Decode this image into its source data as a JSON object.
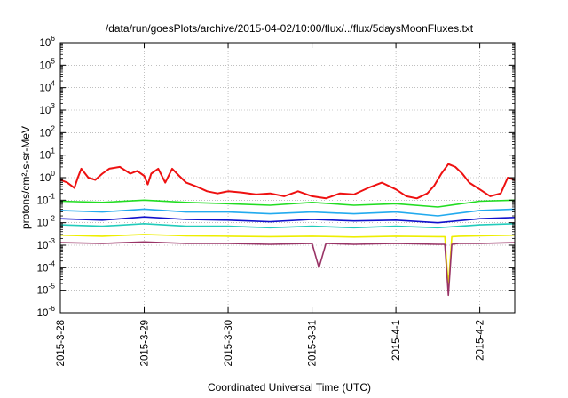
{
  "chart_data": {
    "type": "line",
    "title": "/data/run/goesPlots/archive/2015-04-02/10:00/flux/../flux/5daysMoonFluxes.txt",
    "xlabel": "Coordinated Universal Time (UTC)",
    "ylabel": "protons/cm²-s-sr-MeV",
    "y_scale": "log",
    "ylim": [
      1e-06,
      1000000.0
    ],
    "xlim": [
      "2015-03-28T00:00",
      "2015-04-02T10:00"
    ],
    "x_ticks": [
      "2015-3-28",
      "2015-3-29",
      "2015-3-30",
      "2015-3-31",
      "2015-4-1",
      "2015-4-2"
    ],
    "y_ticks": [
      {
        "base": "10",
        "exp": "6"
      },
      {
        "base": "10",
        "exp": "5"
      },
      {
        "base": "10",
        "exp": "4"
      },
      {
        "base": "10",
        "exp": "3"
      },
      {
        "base": "10",
        "exp": "2"
      },
      {
        "base": "10",
        "exp": "1"
      },
      {
        "base": "10",
        "exp": "0"
      },
      {
        "base": "10",
        "exp": "-1"
      },
      {
        "base": "10",
        "exp": "-2"
      },
      {
        "base": "10",
        "exp": "-3"
      },
      {
        "base": "10",
        "exp": "-4"
      },
      {
        "base": "10",
        "exp": "-5"
      },
      {
        "base": "10",
        "exp": "-6"
      }
    ],
    "grid": true,
    "legend": "none",
    "series": [
      {
        "color": "#ee1111",
        "x": [
          "2015-03-28T00:00",
          "2015-03-28T02:00",
          "2015-03-28T04:00",
          "2015-03-28T05:00",
          "2015-03-28T06:00",
          "2015-03-28T08:00",
          "2015-03-28T10:00",
          "2015-03-28T12:00",
          "2015-03-28T14:00",
          "2015-03-28T17:00",
          "2015-03-28T20:00",
          "2015-03-28T22:00",
          "2015-03-29T00:00",
          "2015-03-29T01:00",
          "2015-03-29T02:00",
          "2015-03-29T04:00",
          "2015-03-29T06:00",
          "2015-03-29T08:00",
          "2015-03-29T10:00",
          "2015-03-29T12:00",
          "2015-03-29T15:00",
          "2015-03-29T18:00",
          "2015-03-29T21:00",
          "2015-03-30T00:00",
          "2015-03-30T04:00",
          "2015-03-30T08:00",
          "2015-03-30T12:00",
          "2015-03-30T16:00",
          "2015-03-30T20:00",
          "2015-03-31T00:00",
          "2015-03-31T04:00",
          "2015-03-31T08:00",
          "2015-03-31T12:00",
          "2015-03-31T16:00",
          "2015-03-31T20:00",
          "2015-04-01T00:00",
          "2015-04-01T03:00",
          "2015-04-01T06:00",
          "2015-04-01T09:00",
          "2015-04-01T11:00",
          "2015-04-01T13:00",
          "2015-04-01T15:00",
          "2015-04-01T17:00",
          "2015-04-01T19:00",
          "2015-04-01T21:00",
          "2015-04-02T00:00",
          "2015-04-02T03:00",
          "2015-04-02T06:00",
          "2015-04-02T08:00",
          "2015-04-02T10:00"
        ],
        "values": [
          0.8,
          0.6,
          0.35,
          1.0,
          2.5,
          1.0,
          0.8,
          1.5,
          2.5,
          3.0,
          1.5,
          2.0,
          1.2,
          0.5,
          1.5,
          2.5,
          0.6,
          2.5,
          1.2,
          0.6,
          0.4,
          0.25,
          0.2,
          0.25,
          0.22,
          0.18,
          0.2,
          0.15,
          0.25,
          0.15,
          0.12,
          0.2,
          0.18,
          0.35,
          0.6,
          0.3,
          0.15,
          0.12,
          0.2,
          0.45,
          1.5,
          4.0,
          3.0,
          1.5,
          0.6,
          0.3,
          0.15,
          0.2,
          1.0,
          0.8
        ]
      },
      {
        "color": "#22dd22",
        "x": [
          "2015-03-28T00:00",
          "2015-03-28T12:00",
          "2015-03-29T00:00",
          "2015-03-29T12:00",
          "2015-03-30T00:00",
          "2015-03-30T12:00",
          "2015-03-31T00:00",
          "2015-03-31T12:00",
          "2015-04-01T00:00",
          "2015-04-01T12:00",
          "2015-04-02T00:00",
          "2015-04-02T10:00"
        ],
        "values": [
          0.09,
          0.08,
          0.1,
          0.08,
          0.07,
          0.06,
          0.08,
          0.06,
          0.07,
          0.05,
          0.09,
          0.1
        ]
      },
      {
        "color": "#22aaee",
        "x": [
          "2015-03-28T00:00",
          "2015-03-28T12:00",
          "2015-03-29T00:00",
          "2015-03-29T12:00",
          "2015-03-30T00:00",
          "2015-03-30T12:00",
          "2015-03-31T00:00",
          "2015-03-31T12:00",
          "2015-04-01T00:00",
          "2015-04-01T12:00",
          "2015-04-02T00:00",
          "2015-04-02T10:00"
        ],
        "values": [
          0.035,
          0.03,
          0.04,
          0.03,
          0.03,
          0.025,
          0.03,
          0.025,
          0.03,
          0.02,
          0.035,
          0.04
        ]
      },
      {
        "color": "#1111cc",
        "x": [
          "2015-03-28T00:00",
          "2015-03-28T12:00",
          "2015-03-29T00:00",
          "2015-03-29T12:00",
          "2015-03-30T00:00",
          "2015-03-30T12:00",
          "2015-03-31T00:00",
          "2015-03-31T12:00",
          "2015-04-01T00:00",
          "2015-04-01T12:00",
          "2015-04-02T00:00",
          "2015-04-02T10:00"
        ],
        "values": [
          0.015,
          0.013,
          0.018,
          0.014,
          0.013,
          0.011,
          0.014,
          0.012,
          0.013,
          0.01,
          0.015,
          0.017
        ]
      },
      {
        "color": "#22ccbb",
        "x": [
          "2015-03-28T00:00",
          "2015-03-28T12:00",
          "2015-03-29T00:00",
          "2015-03-29T12:00",
          "2015-03-30T00:00",
          "2015-03-30T12:00",
          "2015-03-31T00:00",
          "2015-03-31T12:00",
          "2015-04-01T00:00",
          "2015-04-01T12:00",
          "2015-04-02T00:00",
          "2015-04-02T10:00"
        ],
        "values": [
          0.008,
          0.007,
          0.009,
          0.007,
          0.007,
          0.006,
          0.007,
          0.006,
          0.007,
          0.006,
          0.008,
          0.009
        ]
      },
      {
        "color": "#eeee00",
        "x": [
          "2015-03-28T00:00",
          "2015-03-28T12:00",
          "2015-03-29T00:00",
          "2015-03-29T12:00",
          "2015-03-30T00:00",
          "2015-03-30T12:00",
          "2015-03-31T00:00",
          "2015-03-31T12:00",
          "2015-04-01T00:00",
          "2015-04-01T12:00",
          "2015-04-01T14:00",
          "2015-04-01T15:00",
          "2015-04-01T16:00",
          "2015-04-01T18:00",
          "2015-04-02T00:00",
          "2015-04-02T10:00"
        ],
        "values": [
          0.0028,
          0.0025,
          0.003,
          0.0026,
          0.0025,
          0.0024,
          0.0025,
          0.0023,
          0.0025,
          0.0024,
          0.0024,
          1.5e-05,
          0.0024,
          0.0025,
          0.0026,
          0.0028
        ]
      },
      {
        "color": "#993366",
        "x": [
          "2015-03-28T00:00",
          "2015-03-28T12:00",
          "2015-03-29T00:00",
          "2015-03-29T12:00",
          "2015-03-30T00:00",
          "2015-03-30T12:00",
          "2015-03-31T00:00",
          "2015-03-31T02:00",
          "2015-03-31T04:00",
          "2015-03-31T12:00",
          "2015-04-01T00:00",
          "2015-04-01T12:00",
          "2015-04-01T14:00",
          "2015-04-01T15:00",
          "2015-04-01T16:00",
          "2015-04-01T18:00",
          "2015-04-02T00:00",
          "2015-04-02T10:00"
        ],
        "values": [
          0.0013,
          0.0012,
          0.0014,
          0.0012,
          0.0012,
          0.0011,
          0.0012,
          0.0001,
          0.0012,
          0.0011,
          0.0012,
          0.0011,
          0.0011,
          6e-06,
          0.0011,
          0.0012,
          0.0012,
          0.0013
        ]
      }
    ]
  }
}
